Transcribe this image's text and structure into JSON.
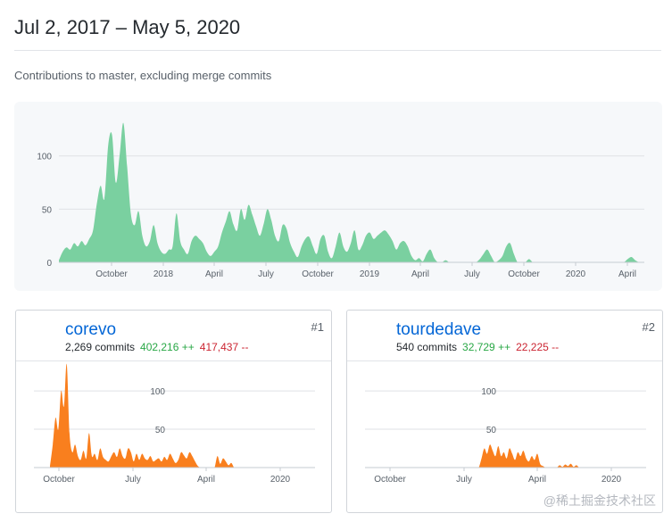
{
  "header": {
    "date_range": "Jul 2, 2017 – May 5, 2020",
    "description": "Contributions to master, excluding merge commits"
  },
  "colors": {
    "commits_area": "#7ad0a0",
    "contributor_area": "#f97f1e",
    "additions": "#28a745",
    "deletions": "#cb2431",
    "link": "#0366d6"
  },
  "chart_data": [
    {
      "type": "area",
      "title": "",
      "xlabel": "",
      "ylabel": "",
      "ylim": [
        0,
        135
      ],
      "yticks": [
        0,
        50,
        100
      ],
      "x_tick_labels": [
        "October",
        "2018",
        "April",
        "July",
        "October",
        "2019",
        "April",
        "July",
        "October",
        "2020",
        "April"
      ],
      "x": [
        0,
        1,
        2,
        3,
        4,
        5,
        6,
        7,
        8,
        9,
        10,
        11,
        12,
        13,
        14,
        15,
        16,
        17,
        18,
        19,
        20,
        21,
        22,
        23,
        24,
        25,
        26,
        27,
        28,
        29,
        30,
        31,
        32,
        33,
        34,
        35,
        36,
        37,
        38,
        39,
        40,
        41,
        42,
        43,
        44,
        45,
        46,
        47,
        48,
        49,
        50,
        51,
        52,
        53,
        54,
        55,
        56,
        57,
        58,
        59,
        60,
        61,
        62,
        63,
        64,
        65,
        66,
        67,
        68,
        69,
        70,
        71,
        72,
        73,
        74,
        75,
        76,
        77,
        78,
        79,
        80,
        81,
        82,
        83,
        84,
        85,
        86,
        87,
        88,
        89,
        90,
        91,
        92,
        93,
        94,
        95,
        96,
        97,
        98,
        99,
        100,
        101,
        102,
        103,
        104,
        105,
        106,
        107,
        108,
        109,
        110,
        111,
        112,
        113,
        114,
        115,
        116,
        117,
        118,
        119,
        120,
        121,
        122,
        123,
        124,
        125,
        126,
        127,
        128,
        129,
        130,
        131,
        132,
        133,
        134,
        135,
        136,
        137,
        138,
        139,
        140,
        141,
        142,
        143,
        144,
        145,
        146,
        147,
        148,
        149,
        150,
        151,
        152,
        153
      ],
      "series": [
        {
          "values": [
            2,
            10,
            14,
            12,
            18,
            15,
            20,
            16,
            22,
            30,
            55,
            72,
            60,
            110,
            120,
            75,
            100,
            131,
            90,
            45,
            35,
            48,
            25,
            15,
            20,
            35,
            18,
            10,
            8,
            12,
            15,
            46,
            20,
            12,
            8,
            20,
            25,
            22,
            18,
            10,
            6,
            10,
            15,
            28,
            38,
            48,
            36,
            30,
            50,
            40,
            54,
            45,
            34,
            25,
            36,
            50,
            40,
            25,
            20,
            35,
            32,
            18,
            10,
            5,
            15,
            22,
            24,
            15,
            8,
            22,
            25,
            10,
            4,
            15,
            28,
            15,
            10,
            18,
            30,
            12,
            16,
            25,
            28,
            22,
            25,
            28,
            30,
            26,
            20,
            12,
            18,
            20,
            15,
            6,
            2,
            4,
            1,
            8,
            12,
            4,
            0,
            0,
            2,
            0,
            0,
            0,
            0,
            0,
            0,
            0,
            0,
            3,
            8,
            12,
            6,
            0,
            2,
            6,
            15,
            18,
            8,
            0,
            0,
            0,
            3,
            0,
            0,
            0,
            0,
            0,
            0,
            0,
            0,
            0,
            0,
            0,
            0,
            0,
            0,
            0,
            0,
            0,
            0,
            0,
            0,
            0,
            0,
            0,
            0,
            0,
            3,
            5,
            2,
            0
          ]
        }
      ]
    },
    {
      "type": "area",
      "title": "",
      "ylim": [
        0,
        135
      ],
      "yticks": [
        50,
        100
      ],
      "x_tick_labels": [
        "October",
        "July",
        "April",
        "2020"
      ],
      "series": [
        {
          "values": [
            2,
            30,
            65,
            50,
            100,
            80,
            135,
            45,
            20,
            30,
            15,
            10,
            22,
            12,
            45,
            15,
            18,
            10,
            25,
            14,
            10,
            8,
            15,
            20,
            14,
            25,
            15,
            12,
            25,
            20,
            8,
            18,
            10,
            18,
            12,
            10,
            15,
            8,
            10,
            12,
            8,
            14,
            10,
            18,
            12,
            6,
            10,
            20,
            16,
            12,
            20,
            15,
            8,
            2,
            0,
            0,
            0,
            0,
            0,
            0,
            15,
            5,
            12,
            8,
            3,
            6,
            0,
            0,
            0,
            0,
            0,
            0,
            0,
            0,
            0,
            0,
            0,
            0,
            0,
            0
          ]
        }
      ]
    },
    {
      "type": "area",
      "title": "",
      "ylim": [
        0,
        135
      ],
      "yticks": [
        50,
        100
      ],
      "x_tick_labels": [
        "October",
        "July",
        "April",
        "2020"
      ],
      "series": [
        {
          "values": [
            0,
            0,
            0,
            0,
            0,
            0,
            0,
            0,
            0,
            0,
            0,
            0,
            0,
            0,
            0,
            0,
            0,
            0,
            0,
            0,
            0,
            0,
            0,
            0,
            0,
            0,
            0,
            0,
            0,
            0,
            0,
            0,
            0,
            0,
            0,
            0,
            12,
            25,
            18,
            30,
            22,
            15,
            28,
            15,
            20,
            12,
            25,
            18,
            10,
            20,
            15,
            22,
            12,
            8,
            15,
            10,
            18,
            5,
            2,
            0,
            0,
            0,
            0,
            0,
            3,
            1,
            4,
            2,
            5,
            1,
            3,
            0,
            0,
            0,
            0,
            0,
            0,
            0,
            0,
            0
          ]
        }
      ]
    }
  ],
  "contributors": [
    {
      "rank": "#1",
      "username": "corevo",
      "commits": "2,269 commits",
      "additions": "402,216 ++",
      "deletions": "417,437 --"
    },
    {
      "rank": "#2",
      "username": "tourdedave",
      "commits": "540 commits",
      "additions": "32,729 ++",
      "deletions": "22,225 --"
    }
  ],
  "watermark": "@稀土掘金技术社区"
}
